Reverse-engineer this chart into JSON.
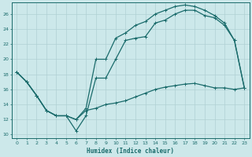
{
  "xlabel": "Humidex (Indice chaleur)",
  "bg_color": "#cce8ea",
  "grid_color": "#b0d0d4",
  "line_color": "#1a6b6b",
  "xlim": [
    -0.5,
    23.5
  ],
  "ylim": [
    9.5,
    27.5
  ],
  "xticks": [
    0,
    1,
    2,
    3,
    4,
    5,
    6,
    7,
    8,
    9,
    10,
    11,
    12,
    13,
    14,
    15,
    16,
    17,
    18,
    19,
    20,
    21,
    22,
    23
  ],
  "yticks": [
    10,
    12,
    14,
    16,
    18,
    20,
    22,
    24,
    26
  ],
  "line1_x": [
    0,
    1,
    2,
    3,
    4,
    5,
    6,
    7,
    8,
    9,
    10,
    11,
    12,
    13,
    14,
    15,
    16,
    17,
    18,
    19,
    20,
    21,
    22,
    23
  ],
  "line1_y": [
    18.3,
    17.0,
    15.2,
    13.2,
    12.5,
    12.5,
    12.0,
    13.2,
    13.5,
    14.0,
    14.2,
    14.5,
    15.0,
    15.5,
    16.0,
    16.3,
    16.5,
    16.7,
    16.8,
    16.5,
    16.2,
    16.2,
    16.0,
    16.2
  ],
  "line2_x": [
    0,
    1,
    2,
    3,
    4,
    5,
    6,
    7,
    8,
    9,
    10,
    11,
    12,
    13,
    14,
    15,
    16,
    17,
    18,
    19,
    20,
    21,
    22,
    23
  ],
  "line2_y": [
    18.3,
    17.0,
    15.2,
    13.2,
    12.5,
    12.5,
    10.5,
    12.5,
    17.5,
    17.5,
    20.0,
    22.5,
    22.8,
    23.0,
    24.8,
    25.2,
    26.0,
    26.5,
    26.5,
    25.8,
    25.5,
    24.5,
    22.5,
    16.2
  ],
  "line3_x": [
    0,
    1,
    2,
    3,
    4,
    5,
    6,
    7,
    8,
    9,
    10,
    11,
    12,
    13,
    14,
    15,
    16,
    17,
    18,
    19,
    20,
    21,
    22,
    23
  ],
  "line3_y": [
    18.3,
    17.0,
    15.2,
    13.2,
    12.5,
    12.5,
    12.0,
    13.5,
    20.0,
    20.0,
    22.8,
    23.5,
    24.5,
    25.0,
    26.0,
    26.5,
    27.0,
    27.2,
    27.0,
    26.5,
    25.8,
    24.8,
    22.5,
    16.2
  ]
}
